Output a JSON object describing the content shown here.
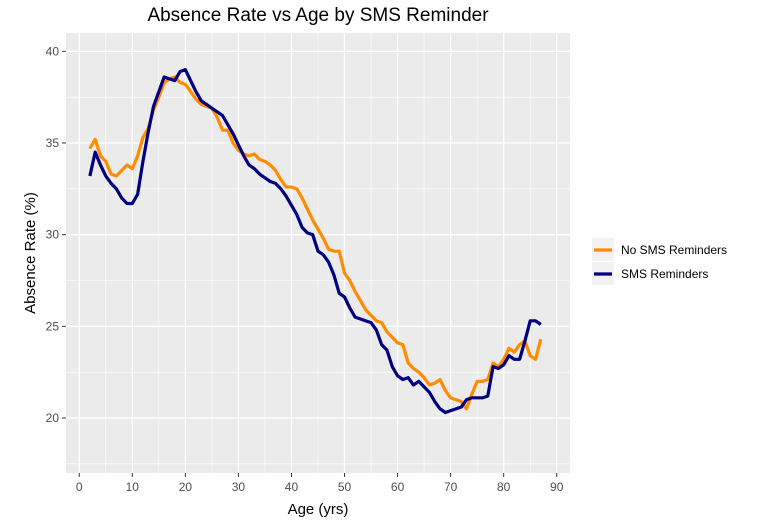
{
  "chart_data": {
    "type": "line",
    "title": "Absence Rate vs Age by SMS Reminder",
    "xlabel": "Age (yrs)",
    "ylabel": "Absence Rate (%)",
    "xlim": [
      -2.5,
      92.5
    ],
    "ylim": [
      17,
      41
    ],
    "x_ticks": [
      0,
      10,
      20,
      30,
      40,
      50,
      60,
      70,
      80,
      90
    ],
    "y_ticks": [
      20,
      25,
      30,
      35,
      40
    ],
    "grid": true,
    "legend_position": "right",
    "series": [
      {
        "name": "No SMS Reminders",
        "color": "#FF8C00",
        "x": [
          2,
          3,
          4,
          5,
          6,
          7,
          8,
          9,
          10,
          11,
          12,
          13,
          14,
          15,
          16,
          17,
          18,
          19,
          20,
          21,
          22,
          23,
          24,
          25,
          26,
          27,
          28,
          29,
          30,
          31,
          32,
          33,
          34,
          35,
          36,
          37,
          38,
          39,
          40,
          41,
          42,
          43,
          44,
          45,
          46,
          47,
          48,
          49,
          50,
          51,
          52,
          53,
          54,
          55,
          56,
          57,
          58,
          59,
          60,
          61,
          62,
          63,
          64,
          65,
          66,
          67,
          68,
          69,
          70,
          71,
          72,
          73,
          74,
          75,
          76,
          77,
          78,
          79,
          80,
          81,
          82,
          83,
          84,
          85,
          86,
          87
        ],
        "values": [
          34.7,
          35.2,
          34.3,
          34.0,
          33.3,
          33.2,
          33.5,
          33.8,
          33.6,
          34.3,
          35.3,
          35.8,
          36.8,
          37.5,
          38.3,
          38.5,
          38.6,
          38.3,
          38.2,
          37.8,
          37.4,
          37.1,
          37.0,
          36.9,
          36.4,
          35.7,
          35.7,
          35.0,
          34.6,
          34.4,
          34.3,
          34.4,
          34.1,
          34.0,
          33.8,
          33.5,
          33.0,
          32.6,
          32.6,
          32.5,
          32.0,
          31.4,
          30.8,
          30.3,
          29.8,
          29.2,
          29.1,
          29.1,
          27.9,
          27.5,
          26.9,
          26.4,
          25.9,
          25.6,
          25.3,
          25.2,
          24.7,
          24.4,
          24.1,
          24.0,
          23.0,
          22.7,
          22.5,
          22.2,
          21.8,
          21.9,
          22.1,
          21.5,
          21.1,
          21.0,
          20.9,
          20.5,
          21.3,
          22.0,
          22.0,
          22.1,
          23.0,
          22.8,
          23.2,
          23.8,
          23.6,
          24.0,
          24.2,
          23.4,
          23.2,
          24.3
        ]
      },
      {
        "name": "SMS Reminders",
        "color": "#000080",
        "x": [
          2,
          3,
          4,
          5,
          6,
          7,
          8,
          9,
          10,
          11,
          12,
          13,
          14,
          15,
          16,
          17,
          18,
          19,
          20,
          21,
          22,
          23,
          24,
          25,
          26,
          27,
          28,
          29,
          30,
          31,
          32,
          33,
          34,
          35,
          36,
          37,
          38,
          39,
          40,
          41,
          42,
          43,
          44,
          45,
          46,
          47,
          48,
          49,
          50,
          51,
          52,
          53,
          54,
          55,
          56,
          57,
          58,
          59,
          60,
          61,
          62,
          63,
          64,
          65,
          66,
          67,
          68,
          69,
          70,
          71,
          72,
          73,
          74,
          75,
          76,
          77,
          78,
          79,
          80,
          81,
          82,
          83,
          84,
          85,
          86,
          87
        ],
        "values": [
          33.2,
          34.5,
          33.8,
          33.2,
          32.8,
          32.5,
          32.0,
          31.7,
          31.7,
          32.2,
          34.0,
          35.6,
          37.0,
          37.8,
          38.6,
          38.5,
          38.4,
          38.9,
          39.0,
          38.4,
          37.8,
          37.3,
          37.1,
          36.9,
          36.7,
          36.5,
          36.0,
          35.5,
          34.9,
          34.3,
          33.8,
          33.6,
          33.3,
          33.1,
          32.9,
          32.8,
          32.5,
          32.1,
          31.6,
          31.1,
          30.4,
          30.1,
          30.0,
          29.1,
          28.9,
          28.5,
          27.8,
          26.8,
          26.6,
          26.0,
          25.5,
          25.4,
          25.3,
          25.2,
          24.8,
          24.0,
          23.7,
          22.8,
          22.3,
          22.1,
          22.2,
          21.8,
          22.0,
          21.7,
          21.4,
          20.9,
          20.5,
          20.3,
          20.4,
          20.5,
          20.6,
          21.0,
          21.1,
          21.1,
          21.1,
          21.2,
          22.8,
          22.7,
          22.9,
          23.4,
          23.2,
          23.2,
          24.2,
          25.3,
          25.3,
          25.1
        ]
      }
    ]
  }
}
